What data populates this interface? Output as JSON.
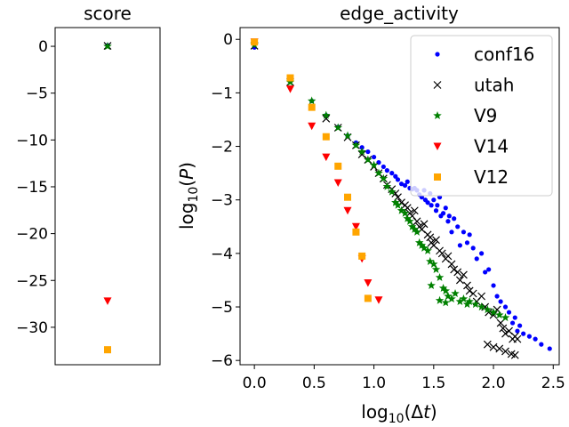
{
  "chart_data": [
    {
      "type": "scatter",
      "title": "score",
      "xlabel": "",
      "ylabel": "",
      "ylim": [
        -34,
        2
      ],
      "yticks": [
        0,
        -5,
        -10,
        -15,
        -20,
        -25,
        -30
      ],
      "ytick_labels": [
        "0",
        "−5",
        "−10",
        "−15",
        "−20",
        "−25",
        "−30"
      ],
      "series": [
        {
          "name": "conf16",
          "color": "#0000ff",
          "marker": "dot",
          "points": [
            [
              0,
              0.1
            ]
          ]
        },
        {
          "name": "utah",
          "color": "#000000",
          "marker": "x",
          "points": [
            [
              0,
              0.05
            ]
          ]
        },
        {
          "name": "V9",
          "color": "#008000",
          "marker": "star",
          "points": [
            [
              0,
              0.0
            ]
          ]
        },
        {
          "name": "V14",
          "color": "#ff0000",
          "marker": "tri",
          "points": [
            [
              0,
              -27.2
            ]
          ]
        },
        {
          "name": "V12",
          "color": "#ffa500",
          "marker": "square",
          "points": [
            [
              0,
              -32.4
            ]
          ]
        }
      ]
    },
    {
      "type": "scatter",
      "title": "edge_activity",
      "xlabel": "log10(Δt)",
      "ylabel": "log10(P)",
      "xlim": [
        -0.12,
        2.55
      ],
      "ylim": [
        -6.08,
        0.22
      ],
      "xticks": [
        0.0,
        0.5,
        1.0,
        1.5,
        2.0,
        2.5
      ],
      "xtick_labels": [
        "0.0",
        "0.5",
        "1.0",
        "1.5",
        "2.0",
        "2.5"
      ],
      "yticks": [
        0,
        -1,
        -2,
        -3,
        -4,
        -5,
        -6
      ],
      "ytick_labels": [
        "0",
        "−1",
        "−2",
        "−3",
        "−4",
        "−5",
        "−6"
      ],
      "legend_position": "top-right",
      "series": [
        {
          "name": "conf16",
          "color": "#0000ff",
          "marker": "dot",
          "points": [
            [
              0.0,
              -0.15
            ],
            [
              0.3,
              -0.78
            ],
            [
              0.48,
              -1.15
            ],
            [
              0.6,
              -1.42
            ],
            [
              0.7,
              -1.64
            ],
            [
              0.78,
              -1.8
            ],
            [
              0.85,
              -1.93
            ],
            [
              0.9,
              -2.02
            ],
            [
              0.95,
              -2.1
            ],
            [
              1.0,
              -2.2
            ],
            [
              1.04,
              -2.3
            ],
            [
              1.08,
              -2.38
            ],
            [
              1.11,
              -2.45
            ],
            [
              1.15,
              -2.5
            ],
            [
              1.18,
              -2.56
            ],
            [
              1.2,
              -2.62
            ],
            [
              1.23,
              -2.7
            ],
            [
              1.26,
              -2.73
            ],
            [
              1.28,
              -2.66
            ],
            [
              1.3,
              -2.78
            ],
            [
              1.32,
              -2.8
            ],
            [
              1.34,
              -2.78
            ],
            [
              1.36,
              -2.82
            ],
            [
              1.38,
              -2.9
            ],
            [
              1.4,
              -2.95
            ],
            [
              1.42,
              -2.82
            ],
            [
              1.43,
              -3.0
            ],
            [
              1.45,
              -3.05
            ],
            [
              1.47,
              -2.88
            ],
            [
              1.48,
              -3.1
            ],
            [
              1.5,
              -3.0
            ],
            [
              1.52,
              -3.2
            ],
            [
              1.53,
              -3.1
            ],
            [
              1.55,
              -2.95
            ],
            [
              1.56,
              -3.3
            ],
            [
              1.58,
              -3.25
            ],
            [
              1.6,
              -3.15
            ],
            [
              1.62,
              -3.4
            ],
            [
              1.63,
              -3.3
            ],
            [
              1.65,
              -3.6
            ],
            [
              1.67,
              -3.35
            ],
            [
              1.7,
              -3.5
            ],
            [
              1.72,
              -3.85
            ],
            [
              1.75,
              -3.6
            ],
            [
              1.78,
              -3.8
            ],
            [
              1.8,
              -3.65
            ],
            [
              1.83,
              -3.9
            ],
            [
              1.86,
              -4.1
            ],
            [
              1.9,
              -4.0
            ],
            [
              1.93,
              -4.35
            ],
            [
              1.96,
              -4.3
            ],
            [
              2.0,
              -4.6
            ],
            [
              2.03,
              -4.8
            ],
            [
              2.06,
              -4.9
            ],
            [
              2.1,
              -5.0
            ],
            [
              2.13,
              -5.1
            ],
            [
              2.16,
              -5.3
            ],
            [
              2.18,
              -5.2
            ],
            [
              2.2,
              -5.45
            ],
            [
              2.22,
              -5.35
            ],
            [
              2.25,
              -5.5
            ],
            [
              2.3,
              -5.55
            ],
            [
              2.35,
              -5.6
            ],
            [
              2.4,
              -5.7
            ],
            [
              2.47,
              -5.78
            ]
          ]
        },
        {
          "name": "utah",
          "color": "#000000",
          "marker": "x",
          "points": [
            [
              0.0,
              -0.12
            ],
            [
              0.3,
              -0.8
            ],
            [
              0.6,
              -1.48
            ],
            [
              0.7,
              -1.65
            ],
            [
              0.78,
              -1.83
            ],
            [
              0.85,
              -1.98
            ],
            [
              0.9,
              -2.15
            ],
            [
              0.95,
              -2.25
            ],
            [
              1.0,
              -2.38
            ],
            [
              1.04,
              -2.5
            ],
            [
              1.08,
              -2.6
            ],
            [
              1.11,
              -2.72
            ],
            [
              1.15,
              -2.8
            ],
            [
              1.18,
              -2.88
            ],
            [
              1.2,
              -2.95
            ],
            [
              1.23,
              -3.05
            ],
            [
              1.26,
              -3.1
            ],
            [
              1.28,
              -3.15
            ],
            [
              1.3,
              -3.25
            ],
            [
              1.32,
              -3.3
            ],
            [
              1.34,
              -3.2
            ],
            [
              1.36,
              -3.4
            ],
            [
              1.38,
              -3.5
            ],
            [
              1.4,
              -3.55
            ],
            [
              1.42,
              -3.45
            ],
            [
              1.45,
              -3.65
            ],
            [
              1.47,
              -3.7
            ],
            [
              1.48,
              -3.8
            ],
            [
              1.5,
              -3.85
            ],
            [
              1.52,
              -3.75
            ],
            [
              1.55,
              -3.95
            ],
            [
              1.57,
              -4.0
            ],
            [
              1.6,
              -4.1
            ],
            [
              1.62,
              -4.05
            ],
            [
              1.65,
              -4.2
            ],
            [
              1.67,
              -4.3
            ],
            [
              1.7,
              -4.35
            ],
            [
              1.72,
              -4.5
            ],
            [
              1.75,
              -4.4
            ],
            [
              1.78,
              -4.6
            ],
            [
              1.8,
              -4.7
            ],
            [
              1.83,
              -4.75
            ],
            [
              1.86,
              -4.9
            ],
            [
              1.9,
              -4.8
            ],
            [
              1.93,
              -5.0
            ],
            [
              1.96,
              -5.1
            ],
            [
              2.0,
              -5.15
            ],
            [
              2.03,
              -5.05
            ],
            [
              2.06,
              -5.3
            ],
            [
              2.08,
              -5.4
            ],
            [
              2.1,
              -5.5
            ],
            [
              2.13,
              -5.45
            ],
            [
              2.16,
              -5.6
            ],
            [
              2.18,
              -5.55
            ],
            [
              2.2,
              -5.6
            ],
            [
              2.0,
              -5.75
            ],
            [
              1.95,
              -5.7
            ],
            [
              2.05,
              -5.78
            ],
            [
              2.1,
              -5.83
            ],
            [
              2.15,
              -5.88
            ],
            [
              2.18,
              -5.9
            ]
          ]
        },
        {
          "name": "V9",
          "color": "#008000",
          "marker": "star",
          "points": [
            [
              0.0,
              -0.1
            ],
            [
              0.3,
              -0.8
            ],
            [
              0.48,
              -1.15
            ],
            [
              0.6,
              -1.42
            ],
            [
              0.7,
              -1.65
            ],
            [
              0.78,
              -1.8
            ],
            [
              0.85,
              -1.98
            ],
            [
              0.9,
              -2.1
            ],
            [
              0.95,
              -2.25
            ],
            [
              1.0,
              -2.35
            ],
            [
              1.04,
              -2.5
            ],
            [
              1.08,
              -2.6
            ],
            [
              1.11,
              -2.75
            ],
            [
              1.15,
              -2.85
            ],
            [
              1.18,
              -3.05
            ],
            [
              1.2,
              -3.1
            ],
            [
              1.23,
              -3.2
            ],
            [
              1.26,
              -3.25
            ],
            [
              1.28,
              -3.35
            ],
            [
              1.3,
              -3.4
            ],
            [
              1.32,
              -3.5
            ],
            [
              1.34,
              -3.55
            ],
            [
              1.36,
              -3.6
            ],
            [
              1.38,
              -3.8
            ],
            [
              1.4,
              -3.85
            ],
            [
              1.42,
              -3.9
            ],
            [
              1.45,
              -3.95
            ],
            [
              1.47,
              -4.15
            ],
            [
              1.5,
              -4.2
            ],
            [
              1.52,
              -4.3
            ],
            [
              1.55,
              -4.45
            ],
            [
              1.48,
              -4.6
            ],
            [
              1.58,
              -4.65
            ],
            [
              1.6,
              -4.7
            ],
            [
              1.62,
              -4.8
            ],
            [
              1.65,
              -4.85
            ],
            [
              1.55,
              -4.88
            ],
            [
              1.6,
              -4.92
            ],
            [
              1.68,
              -4.75
            ],
            [
              1.72,
              -4.9
            ],
            [
              1.75,
              -4.85
            ],
            [
              1.78,
              -4.95
            ],
            [
              1.8,
              -4.9
            ],
            [
              1.85,
              -4.95
            ],
            [
              1.9,
              -5.0
            ],
            [
              1.95,
              -5.05
            ],
            [
              2.0,
              -5.1
            ],
            [
              2.05,
              -5.15
            ],
            [
              2.1,
              -5.2
            ]
          ]
        },
        {
          "name": "V14",
          "color": "#ff0000",
          "marker": "tri",
          "points": [
            [
              0.0,
              -0.05
            ],
            [
              0.3,
              -0.93
            ],
            [
              0.48,
              -1.62
            ],
            [
              0.6,
              -2.2
            ],
            [
              0.7,
              -2.68
            ],
            [
              0.78,
              -3.2
            ],
            [
              0.85,
              -3.5
            ],
            [
              0.9,
              -4.1
            ],
            [
              0.95,
              -4.55
            ],
            [
              1.04,
              -4.87
            ]
          ]
        },
        {
          "name": "V12",
          "color": "#ffa500",
          "marker": "square",
          "points": [
            [
              0.0,
              -0.05
            ],
            [
              0.3,
              -0.72
            ],
            [
              0.48,
              -1.27
            ],
            [
              0.6,
              -1.82
            ],
            [
              0.7,
              -2.37
            ],
            [
              0.78,
              -2.95
            ],
            [
              0.85,
              -3.6
            ],
            [
              0.9,
              -4.05
            ],
            [
              0.95,
              -4.84
            ]
          ]
        }
      ]
    }
  ]
}
